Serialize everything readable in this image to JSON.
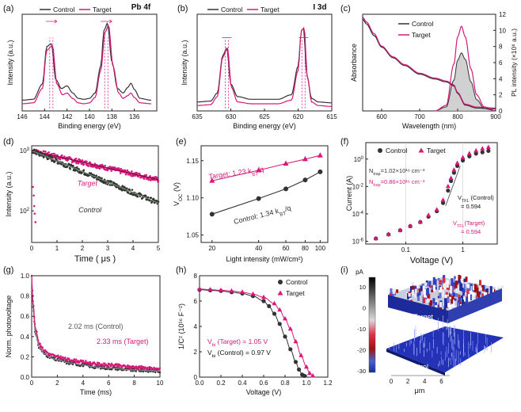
{
  "colors": {
    "control": "#333333",
    "target": "#d6197a",
    "target_light": "#e85aa0",
    "frame": "#222222",
    "shade": "#bdbdbd"
  },
  "chart_data": [
    {
      "id": "a",
      "type": "line",
      "panel_label": "(a)",
      "annotation": "Pb 4f",
      "xlabel": "Binding energy (eV)",
      "ylabel": "Intensity (a.u.)",
      "xlim": [
        146,
        134
      ],
      "xticks": [
        146,
        144,
        142,
        140,
        138,
        136
      ],
      "peaks": [
        143.4,
        138.5
      ],
      "series": [
        {
          "name": "Control",
          "x": [
            146,
            145,
            144.2,
            143.8,
            143.4,
            143.0,
            142.5,
            142.0,
            141.5,
            141.0,
            140.5,
            140.0,
            139.5,
            139.0,
            138.7,
            138.4,
            138.0,
            137.5,
            137.0,
            136.6,
            136.3,
            136.0,
            135.5,
            134.5
          ],
          "y": [
            0.12,
            0.13,
            0.3,
            0.72,
            0.75,
            0.35,
            0.25,
            0.28,
            0.2,
            0.14,
            0.13,
            0.14,
            0.2,
            0.5,
            0.9,
            0.98,
            0.55,
            0.25,
            0.2,
            0.26,
            0.31,
            0.24,
            0.14,
            0.12
          ]
        },
        {
          "name": "Target",
          "x": [
            146,
            145,
            144.2,
            143.8,
            143.3,
            142.9,
            142.4,
            142.0,
            141.5,
            141.0,
            140.5,
            140.0,
            139.5,
            139.0,
            138.6,
            138.3,
            137.9,
            137.4,
            137.0,
            136.6,
            136.3,
            136.0,
            135.5,
            134.5
          ],
          "y": [
            0.08,
            0.09,
            0.25,
            0.68,
            0.73,
            0.3,
            0.18,
            0.2,
            0.14,
            0.09,
            0.08,
            0.09,
            0.15,
            0.45,
            0.88,
            0.96,
            0.5,
            0.2,
            0.14,
            0.17,
            0.2,
            0.15,
            0.09,
            0.08
          ]
        }
      ]
    },
    {
      "id": "b",
      "type": "line",
      "panel_label": "(b)",
      "annotation": "I 3d",
      "xlabel": "Binding energy (eV)",
      "ylabel": "Intensity (a.u.)",
      "xlim": [
        635,
        615
      ],
      "xticks": [
        635,
        630,
        625,
        620,
        615
      ],
      "peaks": [
        630.6,
        619.2
      ],
      "series": [
        {
          "name": "Control",
          "x": [
            635,
            633,
            632,
            631.2,
            630.6,
            630,
            629,
            627,
            625,
            623,
            621,
            620,
            619.5,
            619.2,
            618.7,
            618,
            617,
            615
          ],
          "y": [
            0.1,
            0.11,
            0.2,
            0.62,
            0.7,
            0.3,
            0.16,
            0.13,
            0.13,
            0.13,
            0.18,
            0.5,
            0.9,
            0.92,
            0.4,
            0.14,
            0.1,
            0.09
          ]
        },
        {
          "name": "Target",
          "x": [
            635,
            633,
            632,
            631.2,
            630.5,
            629.9,
            629,
            627,
            625,
            623,
            621,
            620,
            619.5,
            619.1,
            618.6,
            618,
            617,
            615
          ],
          "y": [
            0.06,
            0.07,
            0.16,
            0.6,
            0.7,
            0.26,
            0.1,
            0.08,
            0.08,
            0.08,
            0.12,
            0.45,
            0.9,
            0.93,
            0.36,
            0.1,
            0.06,
            0.05
          ]
        }
      ]
    },
    {
      "id": "c",
      "type": "line",
      "panel_label": "(c)",
      "xlabel": "Wavelength (nm)",
      "ylabel": "Absorbance",
      "y2label": "PL intensity (×10⁶ a.u.)",
      "xlim": [
        550,
        900
      ],
      "xticks": [
        600,
        700,
        800,
        900
      ],
      "y2lim": [
        0,
        12
      ],
      "y2ticks": [
        0,
        2,
        4,
        6,
        8,
        10,
        12
      ],
      "absorbance": [
        {
          "name": "Control",
          "x": [
            550,
            560,
            580,
            600,
            630,
            660,
            700,
            740,
            770,
            790,
            800,
            820,
            850,
            900
          ],
          "y": [
            0.95,
            0.9,
            0.78,
            0.66,
            0.55,
            0.47,
            0.38,
            0.33,
            0.3,
            0.26,
            0.18,
            0.06,
            0.03,
            0.02
          ]
        },
        {
          "name": "Target",
          "x": [
            550,
            560,
            580,
            600,
            630,
            660,
            700,
            740,
            770,
            790,
            800,
            820,
            850,
            900
          ],
          "y": [
            0.97,
            0.92,
            0.8,
            0.67,
            0.56,
            0.48,
            0.39,
            0.34,
            0.31,
            0.27,
            0.19,
            0.07,
            0.04,
            0.03
          ]
        }
      ],
      "pl": [
        {
          "name": "Control",
          "x": [
            740,
            770,
            790,
            800,
            810,
            820,
            835,
            850,
            870,
            900
          ],
          "y": [
            0,
            0.5,
            3.8,
            6.3,
            7.2,
            6.4,
            3.6,
            1.4,
            0.3,
            0
          ]
        },
        {
          "name": "Target",
          "x": [
            740,
            770,
            790,
            800,
            810,
            820,
            835,
            850,
            870,
            900
          ],
          "y": [
            0,
            0.7,
            5.8,
            9.2,
            10.5,
            9.2,
            5.2,
            2.0,
            0.5,
            0
          ]
        }
      ]
    },
    {
      "id": "d",
      "type": "scatter",
      "panel_label": "(d)",
      "xlabel": "Time ( μs )",
      "ylabel": "Intensity (a.u.)",
      "yscale": "log",
      "xlim": [
        0,
        5
      ],
      "ylim": [
        30,
        1200
      ],
      "xticks": [
        0,
        1,
        2,
        3,
        4,
        5
      ],
      "yticks": [
        100,
        1000
      ],
      "series": [
        {
          "name": "Target",
          "label": "Target",
          "y0": 1000,
          "tau": 4.5
        },
        {
          "name": "Control",
          "label": "Control",
          "y0": 1000,
          "tau": 2.5
        }
      ]
    },
    {
      "id": "e",
      "type": "scatter",
      "panel_label": "(e)",
      "xlabel": "Light intensity (mW/cm²)",
      "ylabel": "V_OC (V)",
      "xscale": "log",
      "xlim": [
        17,
        112
      ],
      "ylim": [
        1.04,
        1.17
      ],
      "xticks": [
        20,
        40,
        60,
        80,
        100
      ],
      "yticks": [
        1.05,
        1.1,
        1.15
      ],
      "series": [
        {
          "name": "Target",
          "label": "Target: 1.23 k_BT/q",
          "x": [
            20,
            40,
            60,
            80,
            100
          ],
          "y": [
            1.123,
            1.137,
            1.146,
            1.152,
            1.157
          ]
        },
        {
          "name": "Control",
          "label": "Control: 1.34 k_BT/q",
          "x": [
            20,
            40,
            60,
            80,
            100
          ],
          "y": [
            1.078,
            1.099,
            1.112,
            1.124,
            1.135
          ]
        }
      ]
    },
    {
      "id": "f",
      "type": "scatter",
      "panel_label": "(f)",
      "xlabel": "Voltage (V)",
      "ylabel": "Current (A)",
      "xscale": "log",
      "yscale": "log",
      "xlim": [
        0.02,
        4
      ],
      "xticks": [
        0.1,
        1
      ],
      "series": [
        {
          "name": "Control",
          "x": [
            0.03,
            0.05,
            0.08,
            0.12,
            0.18,
            0.25,
            0.35,
            0.45,
            0.55,
            0.62,
            0.7,
            0.8,
            1.0,
            1.3,
            1.7,
            2.2,
            2.8
          ],
          "y": [
            -5.8,
            -5.5,
            -5.2,
            -4.9,
            -4.6,
            -4.2,
            -3.8,
            -3.2,
            -2.3,
            -1.6,
            -1.0,
            -0.5,
            -0.1,
            0.2,
            0.4,
            0.5,
            0.6
          ]
        },
        {
          "name": "Target",
          "x": [
            0.03,
            0.05,
            0.08,
            0.12,
            0.18,
            0.25,
            0.35,
            0.45,
            0.55,
            0.62,
            0.7,
            0.8,
            1.0,
            1.3,
            1.7,
            2.2,
            2.8
          ],
          "y": [
            -5.8,
            -5.5,
            -5.2,
            -4.9,
            -4.6,
            -4.1,
            -3.7,
            -3.0,
            -2.0,
            -1.4,
            -0.8,
            -0.3,
            0.1,
            0.4,
            0.6,
            0.75,
            0.85
          ]
        }
      ]
    },
    {
      "id": "g",
      "type": "line",
      "panel_label": "(g)",
      "xlabel": "Time (ms)",
      "ylabel": "Norm. photovoltage",
      "xlim": [
        0,
        10
      ],
      "ylim": [
        0,
        1.0
      ],
      "xticks": [
        0,
        2,
        4,
        6,
        8,
        10
      ],
      "yticks": [
        0.0,
        0.2,
        0.4,
        0.6,
        0.8,
        1.0
      ],
      "series": [
        {
          "name": "Control",
          "label": "2.02 ms (Control)",
          "x": [
            0,
            0.1,
            0.3,
            0.6,
            1,
            1.5,
            2,
            3,
            4,
            5,
            6,
            8,
            10
          ],
          "y": [
            1.0,
            0.7,
            0.42,
            0.29,
            0.23,
            0.19,
            0.17,
            0.14,
            0.12,
            0.1,
            0.09,
            0.07,
            0.06
          ]
        },
        {
          "name": "Target",
          "label": "2.33 ms (Target)",
          "x": [
            0,
            0.1,
            0.3,
            0.6,
            1,
            1.5,
            2,
            3,
            4,
            5,
            6,
            8,
            10
          ],
          "y": [
            1.0,
            0.74,
            0.47,
            0.33,
            0.26,
            0.22,
            0.2,
            0.17,
            0.15,
            0.13,
            0.12,
            0.1,
            0.08
          ]
        }
      ]
    },
    {
      "id": "h",
      "type": "scatter",
      "panel_label": "(h)",
      "xlabel": "Voltage (V)",
      "ylabel": "1/C² (10¹⁶ F⁻²)",
      "xlim": [
        0,
        1.2
      ],
      "ylim": [
        0,
        8
      ],
      "xticks": [
        0.0,
        0.2,
        0.4,
        0.6,
        0.8,
        1.0,
        1.2
      ],
      "yticks": [
        0,
        2,
        4,
        6,
        8
      ],
      "annotations": [
        "V_bi (Target) = 1.05 V",
        "V_bi (Control) = 0.97 V"
      ],
      "series": [
        {
          "name": "Control",
          "x": [
            0.0,
            0.1,
            0.2,
            0.3,
            0.4,
            0.5,
            0.6,
            0.65,
            0.7,
            0.75,
            0.8,
            0.85,
            0.9,
            0.93,
            0.96,
            0.98
          ],
          "y": [
            6.9,
            6.85,
            6.8,
            6.7,
            6.6,
            6.4,
            6.0,
            5.6,
            5.0,
            4.2,
            3.2,
            2.2,
            1.2,
            0.6,
            0.2,
            0.1
          ]
        },
        {
          "name": "Target",
          "x": [
            0.0,
            0.1,
            0.2,
            0.3,
            0.4,
            0.5,
            0.6,
            0.7,
            0.75,
            0.8,
            0.85,
            0.9,
            0.95,
            1.0,
            1.03,
            1.06
          ],
          "y": [
            6.95,
            6.9,
            6.85,
            6.8,
            6.7,
            6.55,
            6.3,
            5.8,
            5.3,
            4.6,
            3.8,
            2.8,
            1.7,
            0.8,
            0.3,
            0.1
          ]
        }
      ]
    },
    {
      "id": "i",
      "type": "heatmap",
      "panel_label": "(i)",
      "colorbar_unit": "pA",
      "colorbar_ticks": [
        10,
        0,
        -10,
        -20,
        -30
      ],
      "labels": [
        "Target",
        "Control"
      ],
      "xlabel": "μm",
      "xticks": [
        0,
        2,
        4,
        6
      ]
    }
  ],
  "panel_texts": {
    "a_legend": [
      "Control",
      "Target"
    ],
    "b_legend": [
      "Control",
      "Target"
    ],
    "c_legend": [
      "Control",
      "Target"
    ],
    "f_legend": [
      "Control",
      "Target"
    ],
    "h_legend": [
      "Control",
      "Target"
    ],
    "f_notes": [
      "N_trap=1.02×10¹⁶ cm⁻³",
      "N_trap=0.86×10¹⁶ cm⁻³",
      "V_TFL (Control)",
      "= 0.594",
      "V_TFL(Target)",
      "= 0.594"
    ]
  }
}
